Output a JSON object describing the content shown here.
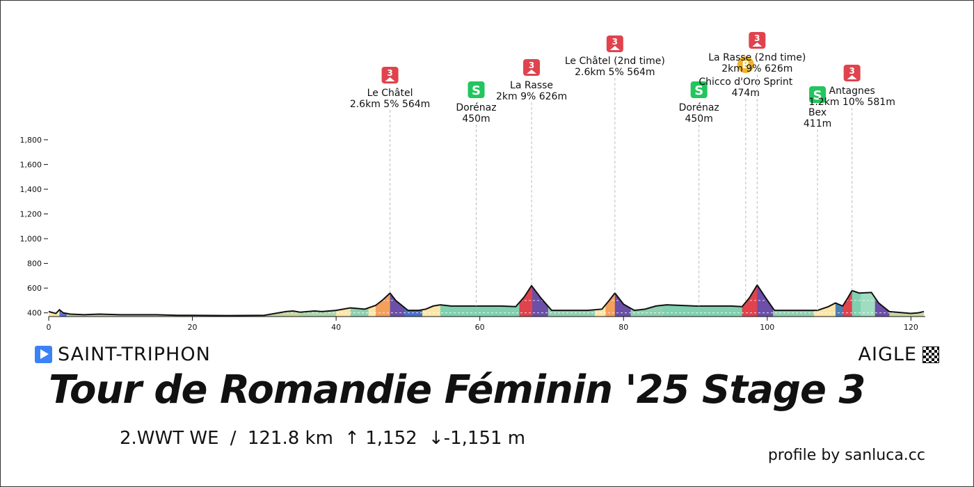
{
  "chart_data": {
    "type": "area",
    "title": "Tour de Romandie Féminin '25 Stage 3",
    "xlabel": "",
    "ylabel": "",
    "xlim": [
      0,
      122
    ],
    "ylim": [
      370,
      1850
    ],
    "x_ticks": [
      0,
      20,
      40,
      60,
      80,
      100,
      120
    ],
    "y_ticks": [
      400,
      600,
      800,
      1000,
      1200,
      1400,
      1600,
      1800
    ],
    "y_tick_labels": [
      "400",
      "600",
      "800",
      "1,000",
      "1,200",
      "1,400",
      "1,600",
      "1,800"
    ],
    "grid": false,
    "profile": {
      "distance_km": [
        0,
        1,
        1.5,
        2,
        3,
        5,
        7,
        10,
        15,
        18,
        20,
        25,
        30,
        33,
        34,
        35,
        37,
        38,
        40,
        42,
        44,
        45.5,
        46.5,
        47.5,
        48.3,
        50,
        51.5,
        52.5,
        53.5,
        54.5,
        56,
        60,
        63,
        65,
        66.2,
        67.2,
        68.5,
        70,
        72,
        75,
        77,
        78,
        78.8,
        80,
        81.5,
        83,
        84.5,
        86,
        90,
        95,
        96.5,
        97.5,
        98.6,
        99.8,
        101,
        103,
        105,
        107,
        108.5,
        109.5,
        110.5,
        111.2,
        111.8,
        112.8,
        114.5,
        115.5,
        117,
        120,
        121,
        121.8
      ],
      "elevation_m": [
        410,
        395,
        425,
        400,
        390,
        385,
        390,
        385,
        385,
        380,
        380,
        378,
        380,
        410,
        415,
        405,
        415,
        410,
        420,
        440,
        430,
        460,
        505,
        560,
        500,
        420,
        420,
        430,
        455,
        465,
        455,
        455,
        455,
        450,
        530,
        620,
        520,
        420,
        420,
        420,
        430,
        500,
        560,
        470,
        420,
        430,
        455,
        465,
        455,
        455,
        450,
        520,
        625,
        520,
        420,
        420,
        420,
        420,
        450,
        480,
        455,
        520,
        580,
        560,
        565,
        480,
        410,
        395,
        400,
        410
      ]
    },
    "segments": [
      {
        "from": 0,
        "to": 1.5,
        "color": "#fbe6a8"
      },
      {
        "from": 1.5,
        "to": 2.5,
        "color": "#5b6fd0"
      },
      {
        "from": 2.5,
        "to": 35,
        "color": "#c7d6a0"
      },
      {
        "from": 35,
        "to": 40,
        "color": "#a8d8a8"
      },
      {
        "from": 40,
        "to": 42,
        "color": "#fbe6a8"
      },
      {
        "from": 42,
        "to": 44.5,
        "color": "#8fd1b0"
      },
      {
        "from": 44.5,
        "to": 45.5,
        "color": "#fbe6a8"
      },
      {
        "from": 45.5,
        "to": 47.5,
        "color": "#f5a05a"
      },
      {
        "from": 47.5,
        "to": 49.5,
        "color": "#6b4fa8"
      },
      {
        "from": 49.5,
        "to": 52,
        "color": "#4a70c8"
      },
      {
        "from": 52,
        "to": 54.5,
        "color": "#fbe6a8"
      },
      {
        "from": 54.5,
        "to": 65.5,
        "color": "#7fd1b0"
      },
      {
        "from": 65.5,
        "to": 67.3,
        "color": "#e0434d"
      },
      {
        "from": 67.3,
        "to": 69.5,
        "color": "#6b4fa8"
      },
      {
        "from": 69.5,
        "to": 76,
        "color": "#8fd1b0"
      },
      {
        "from": 76,
        "to": 77.5,
        "color": "#fbe6a8"
      },
      {
        "from": 77.5,
        "to": 78.8,
        "color": "#f5a05a"
      },
      {
        "from": 78.8,
        "to": 81,
        "color": "#6b4fa8"
      },
      {
        "from": 81,
        "to": 85.5,
        "color": "#8fd1b0"
      },
      {
        "from": 85.5,
        "to": 96.5,
        "color": "#7fd1b0"
      },
      {
        "from": 96.5,
        "to": 98.6,
        "color": "#e0434d"
      },
      {
        "from": 98.6,
        "to": 100.8,
        "color": "#6b4fa8"
      },
      {
        "from": 100.8,
        "to": 106.5,
        "color": "#8fd1b0"
      },
      {
        "from": 106.5,
        "to": 109.5,
        "color": "#fbe6a8"
      },
      {
        "from": 109.5,
        "to": 110.5,
        "color": "#4a80b8"
      },
      {
        "from": 110.5,
        "to": 111.8,
        "color": "#e0434d"
      },
      {
        "from": 111.8,
        "to": 113,
        "color": "#7fd1b0"
      },
      {
        "from": 113,
        "to": 115,
        "color": "#9fdcc0"
      },
      {
        "from": 115,
        "to": 117,
        "color": "#6b4fa8"
      },
      {
        "from": 117,
        "to": 121.8,
        "color": "#c7d6a0"
      }
    ],
    "points": [
      {
        "km": 47.5,
        "type": "climb",
        "cat": "3",
        "label_lines": [
          "Le Châtel",
          "2.6km 5% 564m"
        ]
      },
      {
        "km": 59.5,
        "type": "sprint",
        "symbol": "S",
        "label_lines": [
          "Dorénaz",
          "450m"
        ]
      },
      {
        "km": 67.2,
        "type": "climb",
        "cat": "3",
        "label_lines": [
          "La Rasse",
          "2km 9% 626m"
        ]
      },
      {
        "km": 78.8,
        "type": "climb",
        "cat": "3",
        "label_lines": [
          "Le Châtel (2nd time)",
          "2.6km 5% 564m"
        ]
      },
      {
        "km": 90.5,
        "type": "sprint",
        "symbol": "S",
        "label_lines": [
          "Dorénaz",
          "450m"
        ]
      },
      {
        "km": 97.0,
        "type": "bonus",
        "symbol": "B",
        "label_lines": [
          "Chicco d'Oro Sprint",
          "474m"
        ]
      },
      {
        "km": 98.6,
        "type": "climb",
        "cat": "3",
        "label_lines": [
          "La Rasse (2nd time)",
          "2km 9% 626m"
        ]
      },
      {
        "km": 107.0,
        "type": "sprint",
        "symbol": "S",
        "label_lines": [
          "Bex",
          "411m"
        ]
      },
      {
        "km": 111.8,
        "type": "climb",
        "cat": "3",
        "label_lines": [
          "Antagnes",
          "1.2km 10% 581m"
        ]
      }
    ]
  },
  "start": {
    "place": "SAINT-TRIPHON",
    "icon": "play-icon"
  },
  "finish": {
    "place": "AIGLE",
    "icon": "checkered-flag-icon"
  },
  "title": "Tour de Romandie Féminin '25 Stage 3",
  "stats": {
    "category": "2.WWT WE",
    "sep": "/",
    "distance": "121.8 km",
    "ascent": "↑ 1,152",
    "descent": "↓-1,151 m"
  },
  "credit": "profile by sanluca.cc",
  "colors": {
    "climb_badge": "#e0434d",
    "sprint_badge": "#22c55e",
    "bonus_badge": "#f0b429",
    "outline": "#111111"
  }
}
